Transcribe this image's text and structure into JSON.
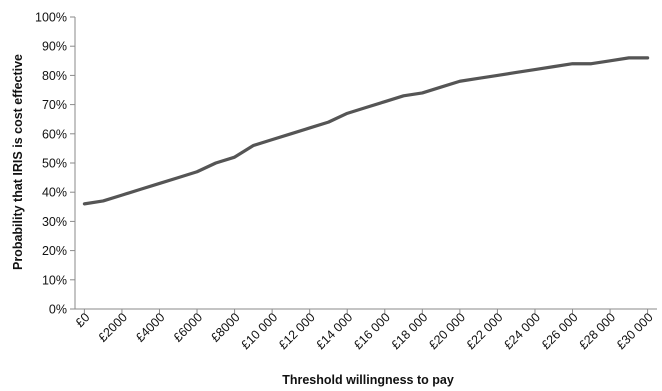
{
  "chart_data": {
    "type": "line",
    "title": "",
    "xlabel": "Threshold willingness to pay",
    "ylabel": "Probability that IRIS is cost effective",
    "x_tick_labels": [
      "£0",
      "£2000",
      "£4000",
      "£6000",
      "£8000",
      "£10 000",
      "£12 000",
      "£14 000",
      "£16 000",
      "£18 000",
      "£20 000",
      "£22 000",
      "£24 000",
      "£26 000",
      "£28 000",
      "£30 000"
    ],
    "x_tick_values": [
      0,
      2000,
      4000,
      6000,
      8000,
      10000,
      12000,
      14000,
      16000,
      18000,
      20000,
      22000,
      24000,
      26000,
      28000,
      30000
    ],
    "y_tick_labels": [
      "0%",
      "10%",
      "20%",
      "30%",
      "40%",
      "50%",
      "60%",
      "70%",
      "80%",
      "90%",
      "100%"
    ],
    "y_tick_values": [
      0,
      10,
      20,
      30,
      40,
      50,
      60,
      70,
      80,
      90,
      100
    ],
    "xlim": [
      -500,
      30500
    ],
    "ylim": [
      0,
      100
    ],
    "grid": false,
    "line_color": "#555555",
    "series": [
      {
        "x": [
          0,
          1000,
          2000,
          3000,
          4000,
          5000,
          6000,
          7000,
          8000,
          9000,
          10000,
          11000,
          12000,
          13000,
          14000,
          15000,
          16000,
          17000,
          18000,
          19000,
          20000,
          21000,
          22000,
          23000,
          24000,
          25000,
          26000,
          27000,
          28000,
          29000,
          30000
        ],
        "y": [
          36,
          37,
          39,
          41,
          43,
          45,
          47,
          50,
          52,
          56,
          58,
          60,
          62,
          64,
          67,
          69,
          71,
          73,
          74,
          76,
          78,
          79,
          80,
          81,
          82,
          83,
          84,
          84,
          85,
          86,
          86
        ]
      }
    ]
  }
}
